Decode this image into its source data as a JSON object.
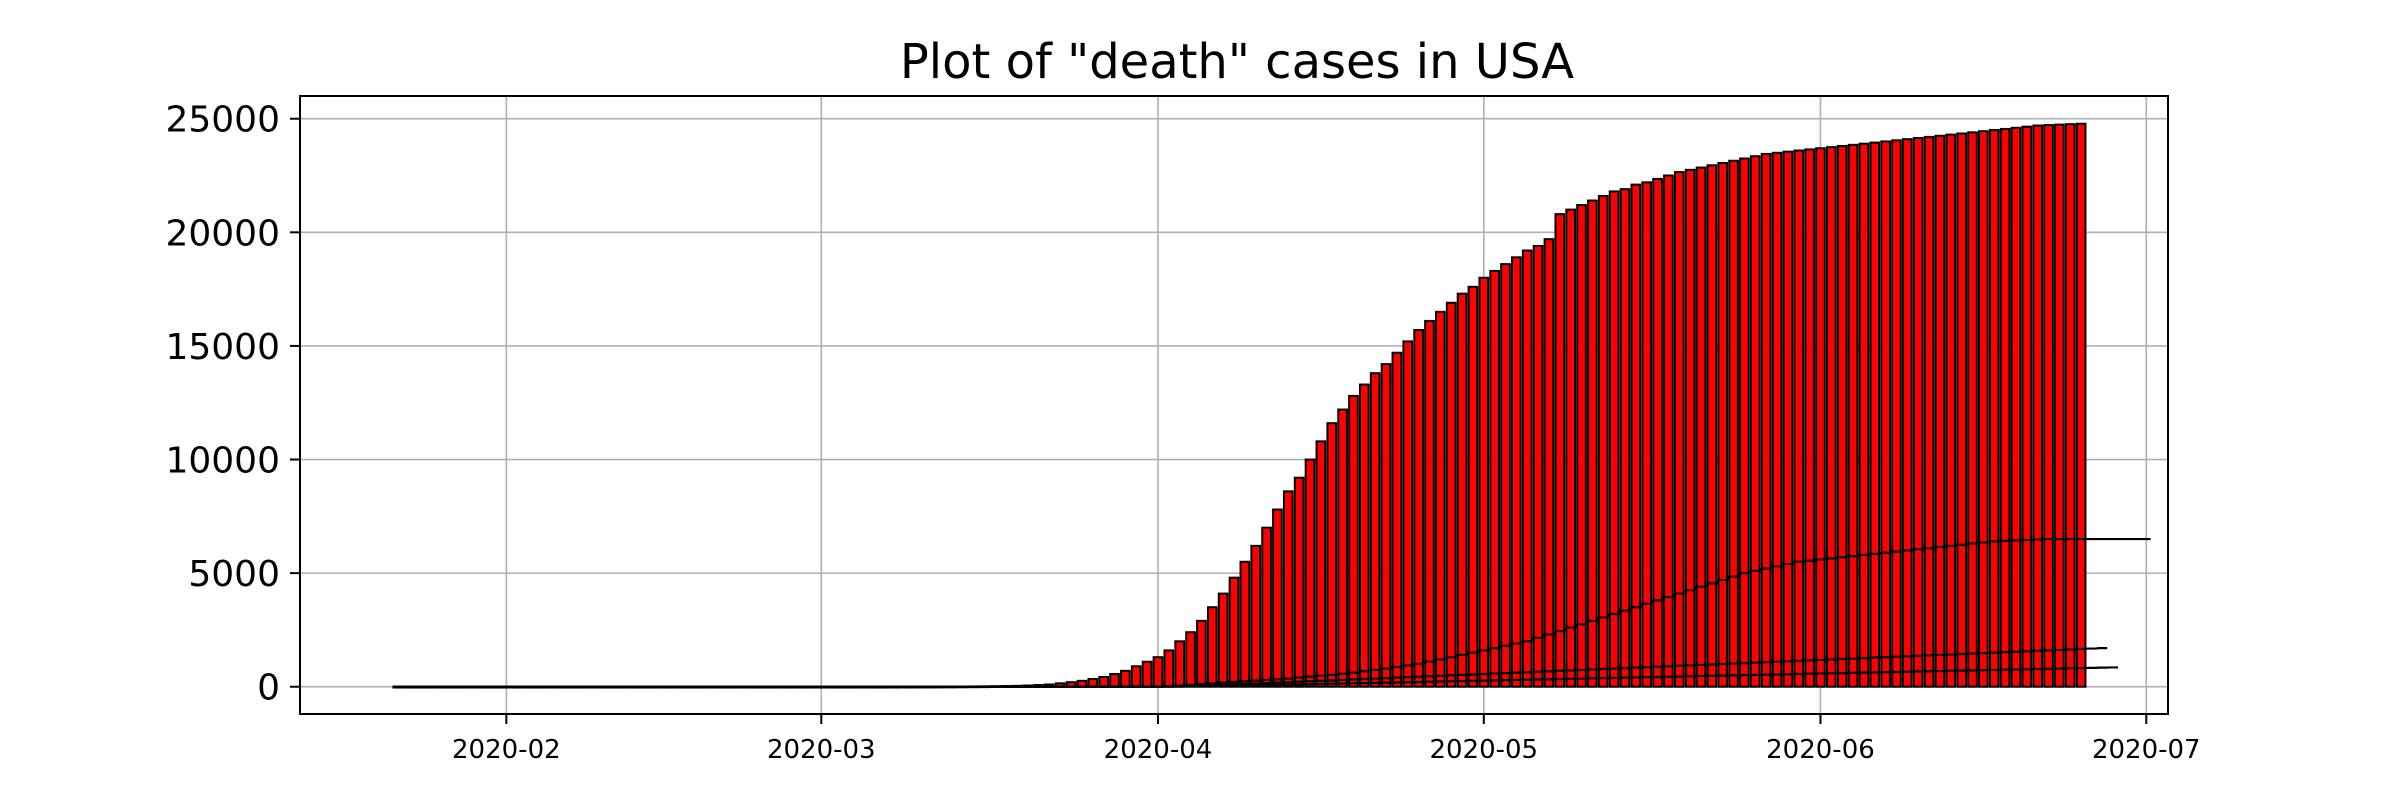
{
  "chart_data": {
    "type": "bar",
    "title": "Plot of \"death\" cases in USA",
    "xlabel": "",
    "ylabel": "",
    "ylim": [
      -1200,
      26000
    ],
    "xlim": [
      "2020-01-13",
      "2020-07-03"
    ],
    "grid": true,
    "bar_color": "#ff0000",
    "edge_color": "#000000",
    "yticks": [
      0,
      5000,
      10000,
      15000,
      20000,
      25000
    ],
    "yticklabels": [
      "0",
      "5000",
      "10000",
      "15000",
      "20000",
      "25000"
    ],
    "xticks": [
      "2020-02-01",
      "2020-03-01",
      "2020-04-01",
      "2020-05-01",
      "2020-06-01",
      "2020-07-01"
    ],
    "xticklabels": [
      "2020-02",
      "2020-03",
      "2020-04",
      "2020-05",
      "2020-06",
      "2020-07"
    ],
    "start_date": "2020-01-22",
    "series": [
      {
        "values": [
          0,
          0,
          0,
          0,
          0,
          0,
          0,
          0,
          0,
          0,
          0,
          0,
          0,
          0,
          0,
          0,
          0,
          0,
          0,
          0,
          0,
          0,
          0,
          0,
          0,
          0,
          0,
          0,
          0,
          0,
          0,
          0,
          0,
          0,
          0,
          0,
          0,
          0,
          0,
          0,
          0,
          0,
          0,
          0,
          0,
          0,
          1,
          1,
          2,
          3,
          5,
          7,
          10,
          14,
          18,
          25,
          32,
          40,
          55,
          75,
          100,
          150,
          200,
          260,
          340,
          430,
          560,
          700,
          900,
          1100,
          1300,
          1600,
          2000,
          2400,
          2900,
          3500,
          4100,
          4800,
          5500,
          6200,
          7000,
          7800,
          8600,
          9200,
          10000,
          10800,
          11600,
          12200,
          12800,
          13300,
          13800,
          14200,
          14700,
          15200,
          15700,
          16100,
          16500,
          16900,
          17300,
          17600,
          18000,
          18300,
          18600,
          18900,
          19200,
          19400,
          19700,
          20800,
          21000,
          21200,
          21400,
          21600,
          21800,
          21900,
          22100,
          22200,
          22350,
          22500,
          22650,
          22750,
          22850,
          22950,
          23050,
          23150,
          23250,
          23350,
          23450,
          23500,
          23550,
          23600,
          23650,
          23700,
          23750,
          23800,
          23850,
          23900,
          23950,
          24000,
          24050,
          24100,
          24150,
          24200,
          24250,
          24300,
          24350,
          24400,
          24450,
          24500,
          24550,
          24600,
          24650,
          24700,
          24720,
          24740,
          24760,
          24780
        ]
      },
      {
        "values": [
          0,
          0,
          0,
          0,
          0,
          0,
          0,
          0,
          0,
          0,
          0,
          0,
          0,
          0,
          0,
          0,
          0,
          0,
          0,
          0,
          0,
          0,
          0,
          0,
          0,
          0,
          0,
          0,
          0,
          0,
          0,
          0,
          0,
          0,
          0,
          0,
          0,
          0,
          0,
          0,
          0,
          0,
          0,
          0,
          0,
          0,
          0,
          0,
          0,
          0,
          0,
          0,
          0,
          0,
          0,
          0,
          0,
          0,
          0,
          0,
          0,
          0,
          0,
          0,
          0,
          0,
          0,
          0,
          0,
          0,
          0,
          20,
          50,
          80,
          120,
          150,
          180,
          210,
          240,
          270,
          300,
          330,
          360,
          400,
          440,
          480,
          520,
          570,
          620,
          680,
          740,
          800,
          870,
          940,
          1000,
          1100,
          1200,
          1300,
          1400,
          1500,
          1600,
          1700,
          1800,
          1900,
          2000,
          2150,
          2300,
          2450,
          2600,
          2750,
          2900,
          3050,
          3200,
          3350,
          3500,
          3650,
          3800,
          3950,
          4100,
          4250,
          4400,
          4550,
          4700,
          4850,
          5000,
          5100,
          5200,
          5300,
          5400,
          5500,
          5550,
          5600,
          5650,
          5700,
          5750,
          5800,
          5850,
          5900,
          5950,
          6000,
          6050,
          6100,
          6150,
          6200,
          6250,
          6300,
          6350,
          6400,
          6420,
          6440,
          6460,
          6480,
          6500,
          6500,
          6500,
          6500,
          6500,
          6500,
          6500,
          6500,
          6500,
          6500
        ]
      },
      {
        "values": [
          0,
          0,
          0,
          0,
          0,
          0,
          0,
          0,
          0,
          0,
          0,
          0,
          0,
          0,
          0,
          0,
          0,
          0,
          0,
          0,
          0,
          0,
          0,
          0,
          0,
          0,
          0,
          0,
          0,
          0,
          0,
          0,
          0,
          0,
          0,
          0,
          0,
          0,
          0,
          0,
          0,
          0,
          0,
          0,
          0,
          0,
          0,
          0,
          0,
          0,
          0,
          0,
          0,
          0,
          0,
          0,
          0,
          0,
          0,
          0,
          0,
          0,
          0,
          0,
          0,
          0,
          0,
          0,
          0,
          0,
          0,
          10,
          20,
          30,
          45,
          60,
          80,
          100,
          120,
          140,
          160,
          180,
          200,
          220,
          240,
          260,
          280,
          300,
          320,
          340,
          360,
          380,
          400,
          420,
          440,
          460,
          480,
          500,
          520,
          540,
          560,
          580,
          600,
          620,
          640,
          660,
          680,
          700,
          720,
          740,
          760,
          780,
          800,
          820,
          840,
          860,
          880,
          900,
          920,
          940,
          960,
          980,
          1000,
          1020,
          1040,
          1060,
          1080,
          1100,
          1120,
          1140,
          1160,
          1180,
          1200,
          1220,
          1240,
          1260,
          1280,
          1300,
          1320,
          1340,
          1360,
          1380,
          1400,
          1420,
          1440,
          1460,
          1480,
          1500,
          1520,
          1540,
          1560,
          1580,
          1600,
          1620,
          1640,
          1660,
          1680,
          1700
        ]
      },
      {
        "values": [
          0,
          0,
          0,
          0,
          0,
          0,
          0,
          0,
          0,
          0,
          0,
          0,
          0,
          0,
          0,
          0,
          0,
          0,
          0,
          0,
          0,
          0,
          0,
          0,
          0,
          0,
          0,
          0,
          0,
          0,
          0,
          0,
          0,
          0,
          0,
          0,
          0,
          0,
          0,
          0,
          0,
          0,
          0,
          0,
          0,
          0,
          0,
          0,
          0,
          0,
          0,
          0,
          0,
          0,
          0,
          0,
          0,
          0,
          0,
          0,
          0,
          0,
          0,
          0,
          0,
          0,
          0,
          0,
          0,
          0,
          0,
          5,
          10,
          15,
          20,
          28,
          36,
          44,
          52,
          60,
          70,
          80,
          90,
          100,
          110,
          120,
          130,
          140,
          150,
          160,
          170,
          180,
          190,
          200,
          210,
          220,
          230,
          240,
          250,
          260,
          270,
          280,
          290,
          300,
          310,
          320,
          330,
          340,
          350,
          360,
          370,
          380,
          390,
          400,
          410,
          420,
          430,
          440,
          450,
          460,
          470,
          480,
          490,
          500,
          510,
          520,
          530,
          540,
          550,
          560,
          570,
          580,
          590,
          600,
          610,
          620,
          630,
          640,
          650,
          660,
          670,
          680,
          690,
          700,
          710,
          720,
          730,
          740,
          750,
          760,
          770,
          780,
          790,
          800,
          810,
          820,
          830,
          840,
          850
        ]
      }
    ]
  }
}
